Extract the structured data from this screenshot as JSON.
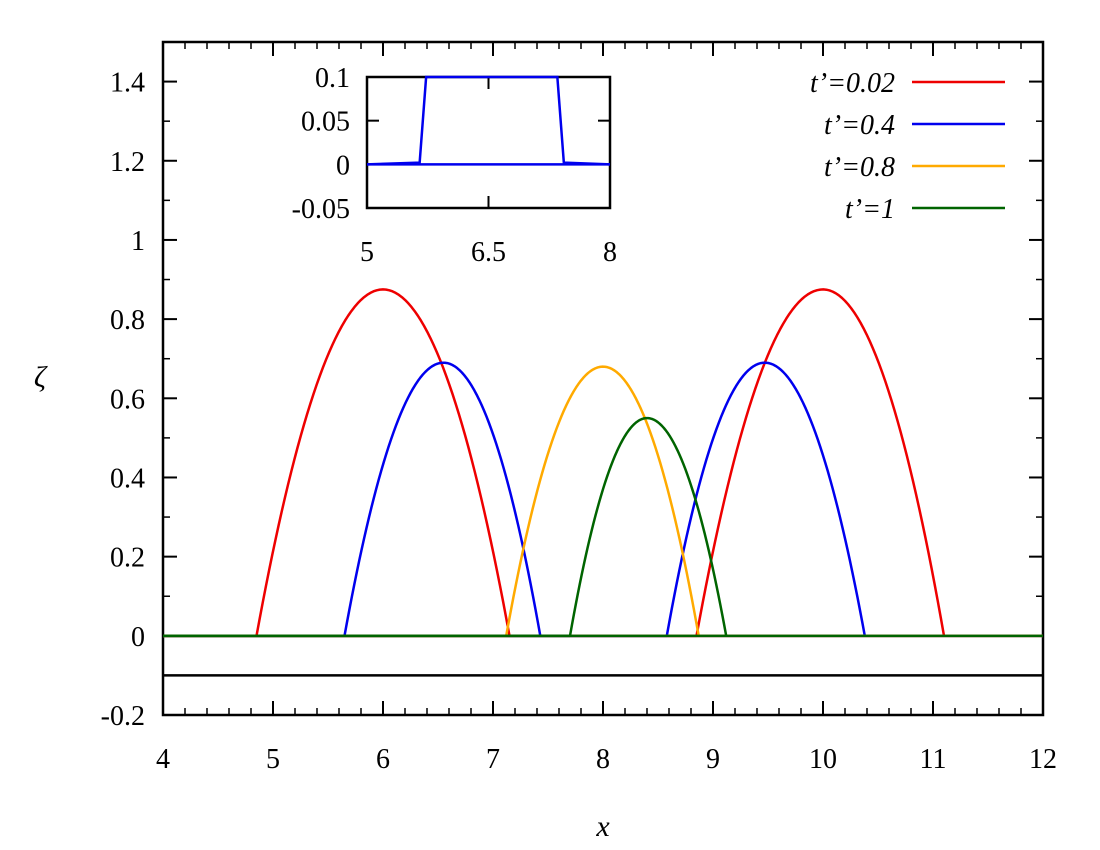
{
  "chart_data": [
    {
      "type": "line",
      "xlabel": "x",
      "ylabel": "ζ",
      "xlim": [
        4,
        12
      ],
      "ylim": [
        -0.2,
        1.5
      ],
      "xticks": [
        4,
        5,
        6,
        7,
        8,
        9,
        10,
        11,
        12
      ],
      "yticks": [
        -0.2,
        0,
        0.2,
        0.4,
        0.6,
        0.8,
        1,
        1.2,
        1.4
      ],
      "xtick_labels": [
        "4",
        "5",
        "6",
        "7",
        "8",
        "9",
        "10",
        "11",
        "12"
      ],
      "ytick_labels": [
        "-0.2",
        "0",
        "0.2",
        "0.4",
        "0.6",
        "0.8",
        "1",
        "1.2",
        "1.4"
      ],
      "grid": false,
      "legend_position": "top-right",
      "reference_line": {
        "y": -0.1,
        "color": "#000000"
      },
      "series": [
        {
          "name": "t’=0.02",
          "color": "#ee0000",
          "humps": [
            {
              "x0": 4.85,
              "x1": 7.15,
              "peak_x": 6.0,
              "peak": 0.875
            },
            {
              "x0": 8.85,
              "x1": 11.1,
              "peak_x": 10.0,
              "peak": 0.875
            }
          ]
        },
        {
          "name": "t’=0.4",
          "color": "#0000ee",
          "humps": [
            {
              "x0": 5.65,
              "x1": 7.43,
              "peak_x": 6.55,
              "peak": 0.69
            },
            {
              "x0": 8.58,
              "x1": 10.38,
              "peak_x": 9.47,
              "peak": 0.69
            }
          ]
        },
        {
          "name": "t’=0.8",
          "color": "#ffaa00",
          "humps": [
            {
              "x0": 7.12,
              "x1": 8.87,
              "peak_x": 8.0,
              "peak": 0.68
            }
          ]
        },
        {
          "name": "t’=1",
          "color": "#006400",
          "humps": [
            {
              "x0": 7.7,
              "x1": 9.12,
              "peak_x": 8.4,
              "peak": 0.55
            }
          ]
        }
      ]
    },
    {
      "type": "line",
      "role": "inset",
      "xlim": [
        5,
        8
      ],
      "ylim": [
        -0.05,
        0.1
      ],
      "xticks": [
        5,
        6.5,
        8
      ],
      "yticks": [
        -0.05,
        0,
        0.05,
        0.1
      ],
      "xtick_labels": [
        "5",
        "6.5",
        "8"
      ],
      "ytick_labels": [
        "-0.05",
        "0",
        "0.05",
        "0.1"
      ],
      "series": [
        {
          "name": "t’=0.4",
          "color": "#0000ee",
          "x": [
            5,
            5.65,
            5.73,
            7.35,
            7.43,
            8
          ],
          "y": [
            0,
            0.002,
            0.1,
            0.1,
            0.002,
            0
          ]
        },
        {
          "name": "baseline",
          "color": "#0000ee",
          "x": [
            5,
            8
          ],
          "y": [
            0,
            0
          ]
        }
      ]
    }
  ]
}
